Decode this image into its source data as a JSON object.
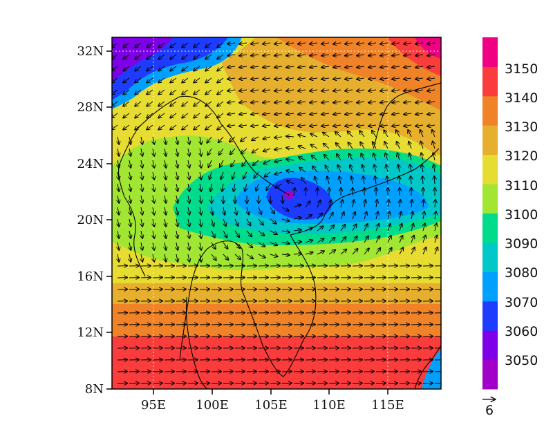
{
  "map": {
    "lat_labels": [
      "8N",
      "12N",
      "16N",
      "20N",
      "24N",
      "28N",
      "32N"
    ],
    "lon_labels": [
      "95E",
      "100E",
      "105E",
      "110E",
      "115E"
    ],
    "lon_range": [
      91.5,
      119.5
    ],
    "lat_range": [
      8,
      32.4
    ],
    "field": "geopotential height with wind vectors",
    "gridlines": "dotted white"
  },
  "colorbar": {
    "labels": [
      "3050",
      "3060",
      "3070",
      "3080",
      "3090",
      "3100",
      "3110",
      "3120",
      "3130",
      "3140",
      "3150"
    ],
    "colors": [
      "#a000c8",
      "#7d00e6",
      "#1e3cff",
      "#00a0ff",
      "#00c8c8",
      "#00dc8c",
      "#a0e632",
      "#e6dc32",
      "#e6af2d",
      "#f08228",
      "#fa3c3c",
      "#f00082"
    ]
  },
  "reference_vector": {
    "label": "6"
  }
}
